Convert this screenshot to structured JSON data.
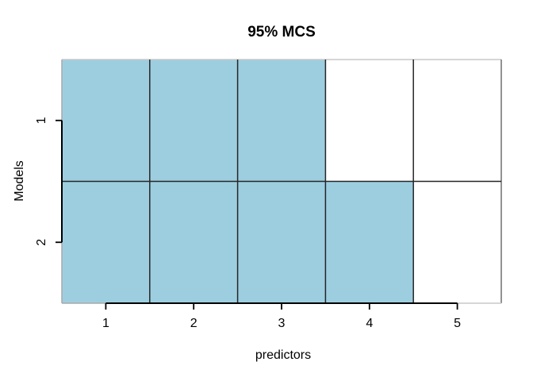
{
  "chart_data": {
    "type": "heatmap",
    "title": "95% MCS",
    "xlabel": "predictors",
    "ylabel": "Models",
    "x_categories": [
      "1",
      "2",
      "3",
      "4",
      "5"
    ],
    "y_categories": [
      "1",
      "2"
    ],
    "series": [
      {
        "name": "1",
        "values": [
          1,
          1,
          1,
          0,
          0
        ]
      },
      {
        "name": "2",
        "values": [
          1,
          1,
          1,
          1,
          0
        ]
      }
    ],
    "x_range": [
      0.5,
      5.5
    ],
    "y_range": [
      0.5,
      2.5
    ],
    "legend": "none",
    "grid": "cell-borders",
    "colors": {
      "selected_fill": "#9DCEE0",
      "unselected_fill": "#FFFFFF",
      "grid_line": "#262626",
      "axis_line": "#000000",
      "frame_top": "#C9C9C9",
      "frame_left": "#A9A9A9",
      "frame_right": "#6F6F6F",
      "frame_bottom": "#C9C9C9",
      "text": "#000000",
      "background": "#FFFFFF"
    }
  }
}
